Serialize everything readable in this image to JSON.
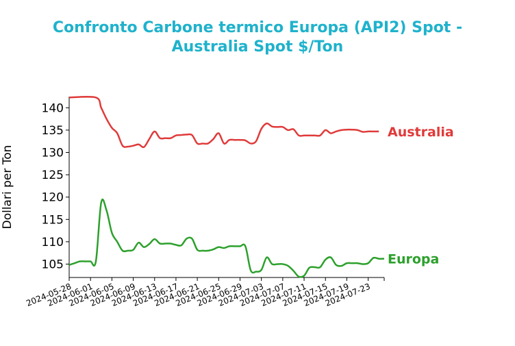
{
  "chart_data": {
    "type": "line",
    "title_lines": [
      "Confronto Carbone termico Europa (API2) Spot -",
      "Australia Spot $/Ton"
    ],
    "title_color": "#1fb2cc",
    "xlabel": "",
    "ylabel": "Dollari per Ton",
    "ylim": [
      102,
      142.5
    ],
    "yticks": [
      105,
      110,
      115,
      120,
      125,
      130,
      135,
      140
    ],
    "xlim": [
      "2024-05-28",
      "2024-07-26"
    ],
    "xticks": [
      "2024-05-28",
      "2024-06-01",
      "2024-06-05",
      "2024-06-09",
      "2024-06-13",
      "2024-06-17",
      "2024-06-21",
      "2024-06-25",
      "2024-06-29",
      "2024-07-03",
      "2024-07-07",
      "2024-07-11",
      "2024-07-15",
      "2024-07-19",
      "2024-07-23"
    ],
    "grid": false,
    "legend": "labels at line ends",
    "series": [
      {
        "name": "Australia",
        "color": "#e03a3a",
        "points": [
          [
            "2024-05-28",
            142.3
          ],
          [
            "2024-06-02",
            142.3
          ],
          [
            "2024-06-03",
            140
          ],
          [
            "2024-06-04",
            137.5
          ],
          [
            "2024-06-05",
            135.5
          ],
          [
            "2024-06-06",
            134.3
          ],
          [
            "2024-06-07",
            131.5
          ],
          [
            "2024-06-08",
            131.3
          ],
          [
            "2024-06-09",
            131.5
          ],
          [
            "2024-06-10",
            131.8
          ],
          [
            "2024-06-11",
            131.2
          ],
          [
            "2024-06-12",
            133
          ],
          [
            "2024-06-13",
            134.7
          ],
          [
            "2024-06-14",
            133.2
          ],
          [
            "2024-06-15",
            133.2
          ],
          [
            "2024-06-16",
            133.2
          ],
          [
            "2024-06-17",
            133.8
          ],
          [
            "2024-06-18",
            133.9
          ],
          [
            "2024-06-19",
            134
          ],
          [
            "2024-06-20",
            133.9
          ],
          [
            "2024-06-21",
            132
          ],
          [
            "2024-06-22",
            132
          ],
          [
            "2024-06-23",
            132
          ],
          [
            "2024-06-24",
            133
          ],
          [
            "2024-06-25",
            134.3
          ],
          [
            "2024-06-26",
            132
          ],
          [
            "2024-06-27",
            132.8
          ],
          [
            "2024-06-28",
            132.8
          ],
          [
            "2024-06-29",
            132.8
          ],
          [
            "2024-06-30",
            132.7
          ],
          [
            "2024-07-01",
            132
          ],
          [
            "2024-07-02",
            132.5
          ],
          [
            "2024-07-03",
            135.3
          ],
          [
            "2024-07-04",
            136.5
          ],
          [
            "2024-07-05",
            135.8
          ],
          [
            "2024-07-06",
            135.7
          ],
          [
            "2024-07-07",
            135.7
          ],
          [
            "2024-07-08",
            135
          ],
          [
            "2024-07-09",
            135.2
          ],
          [
            "2024-07-10",
            133.8
          ],
          [
            "2024-07-11",
            133.8
          ],
          [
            "2024-07-12",
            133.8
          ],
          [
            "2024-07-13",
            133.8
          ],
          [
            "2024-07-14",
            133.8
          ],
          [
            "2024-07-15",
            135
          ],
          [
            "2024-07-16",
            134.3
          ],
          [
            "2024-07-17",
            134.7
          ],
          [
            "2024-07-18",
            135
          ],
          [
            "2024-07-19",
            135.1
          ],
          [
            "2024-07-20",
            135.1
          ],
          [
            "2024-07-21",
            135
          ],
          [
            "2024-07-22",
            134.6
          ],
          [
            "2024-07-23",
            134.7
          ],
          [
            "2024-07-24",
            134.7
          ],
          [
            "2024-07-25",
            134.7
          ]
        ]
      },
      {
        "name": "Europa",
        "color": "#2ca02c",
        "points": [
          [
            "2024-05-28",
            104.8
          ],
          [
            "2024-05-29",
            105.2
          ],
          [
            "2024-05-30",
            105.6
          ],
          [
            "2024-05-31",
            105.6
          ],
          [
            "2024-06-01",
            105.6
          ],
          [
            "2024-06-02",
            105.6
          ],
          [
            "2024-06-03",
            118.8
          ],
          [
            "2024-06-04",
            117
          ],
          [
            "2024-06-05",
            112
          ],
          [
            "2024-06-06",
            110
          ],
          [
            "2024-06-07",
            108
          ],
          [
            "2024-06-08",
            108
          ],
          [
            "2024-06-09",
            108.2
          ],
          [
            "2024-06-10",
            109.8
          ],
          [
            "2024-06-11",
            108.8
          ],
          [
            "2024-06-12",
            109.5
          ],
          [
            "2024-06-13",
            110.6
          ],
          [
            "2024-06-14",
            109.6
          ],
          [
            "2024-06-15",
            109.6
          ],
          [
            "2024-06-16",
            109.6
          ],
          [
            "2024-06-17",
            109.3
          ],
          [
            "2024-06-18",
            109.2
          ],
          [
            "2024-06-19",
            110.7
          ],
          [
            "2024-06-20",
            110.7
          ],
          [
            "2024-06-21",
            108.2
          ],
          [
            "2024-06-22",
            108
          ],
          [
            "2024-06-23",
            108
          ],
          [
            "2024-06-24",
            108.3
          ],
          [
            "2024-06-25",
            108.8
          ],
          [
            "2024-06-26",
            108.6
          ],
          [
            "2024-06-27",
            109
          ],
          [
            "2024-06-28",
            109
          ],
          [
            "2024-06-29",
            109
          ],
          [
            "2024-06-30",
            109
          ],
          [
            "2024-07-01",
            103.6
          ],
          [
            "2024-07-02",
            103.3
          ],
          [
            "2024-07-03",
            103.7
          ],
          [
            "2024-07-04",
            106.5
          ],
          [
            "2024-07-05",
            105
          ],
          [
            "2024-07-06",
            105
          ],
          [
            "2024-07-07",
            105
          ],
          [
            "2024-07-08",
            104.6
          ],
          [
            "2024-07-09",
            103.5
          ],
          [
            "2024-07-10",
            102.2
          ],
          [
            "2024-07-11",
            102.4
          ],
          [
            "2024-07-12",
            104.2
          ],
          [
            "2024-07-13",
            104.3
          ],
          [
            "2024-07-14",
            104.3
          ],
          [
            "2024-07-15",
            106
          ],
          [
            "2024-07-16",
            106.5
          ],
          [
            "2024-07-17",
            104.8
          ],
          [
            "2024-07-18",
            104.6
          ],
          [
            "2024-07-19",
            105.2
          ],
          [
            "2024-07-20",
            105.2
          ],
          [
            "2024-07-21",
            105.2
          ],
          [
            "2024-07-22",
            105
          ],
          [
            "2024-07-23",
            105.2
          ],
          [
            "2024-07-24",
            106.4
          ],
          [
            "2024-07-25",
            106.2
          ],
          [
            "2024-07-26",
            106.2
          ]
        ]
      }
    ]
  }
}
